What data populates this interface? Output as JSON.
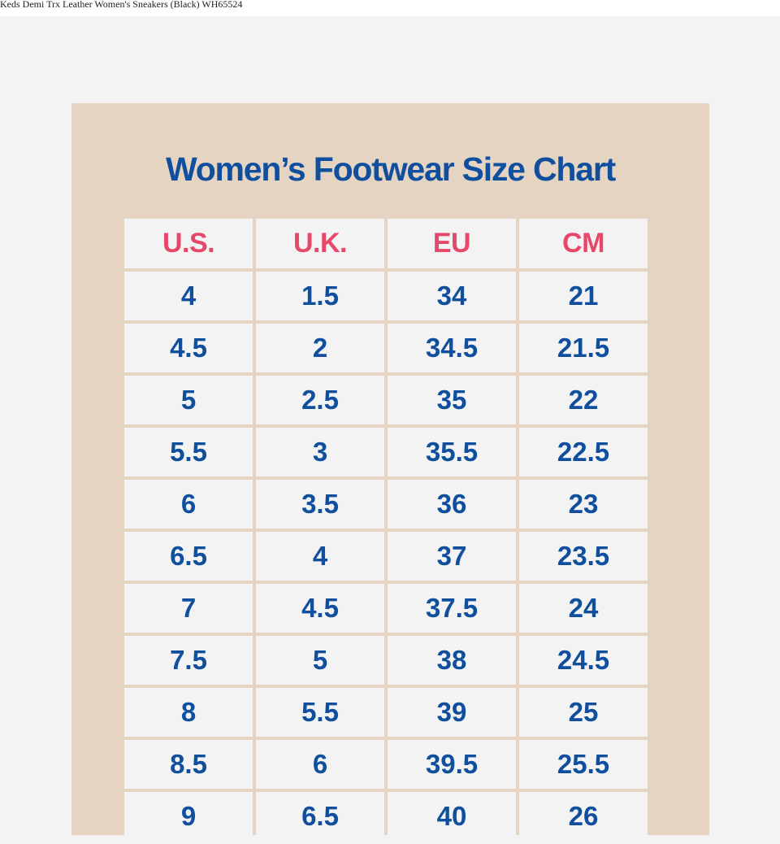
{
  "window": {
    "title": "Keds Demi Trx Leather Women's Sneakers (Black) WH65524"
  },
  "chart": {
    "title": "Women’s Footwear Size Chart",
    "headers": [
      "U.S.",
      "U.K.",
      "EU",
      "CM"
    ],
    "rows": [
      [
        "4",
        "1.5",
        "34",
        "21"
      ],
      [
        "4.5",
        "2",
        "34.5",
        "21.5"
      ],
      [
        "5",
        "2.5",
        "35",
        "22"
      ],
      [
        "5.5",
        "3",
        "35.5",
        "22.5"
      ],
      [
        "6",
        "3.5",
        "36",
        "23"
      ],
      [
        "6.5",
        "4",
        "37",
        "23.5"
      ],
      [
        "7",
        "4.5",
        "37.5",
        "24"
      ],
      [
        "7.5",
        "5",
        "38",
        "24.5"
      ],
      [
        "8",
        "5.5",
        "39",
        "25"
      ],
      [
        "8.5",
        "6",
        "39.5",
        "25.5"
      ],
      [
        "9",
        "6.5",
        "40",
        "26"
      ]
    ]
  },
  "colors": {
    "background": "#f3f3f3",
    "card": "#e6d4c2",
    "title_blue": "#0f4f9e",
    "header_pink": "#e6486a"
  }
}
